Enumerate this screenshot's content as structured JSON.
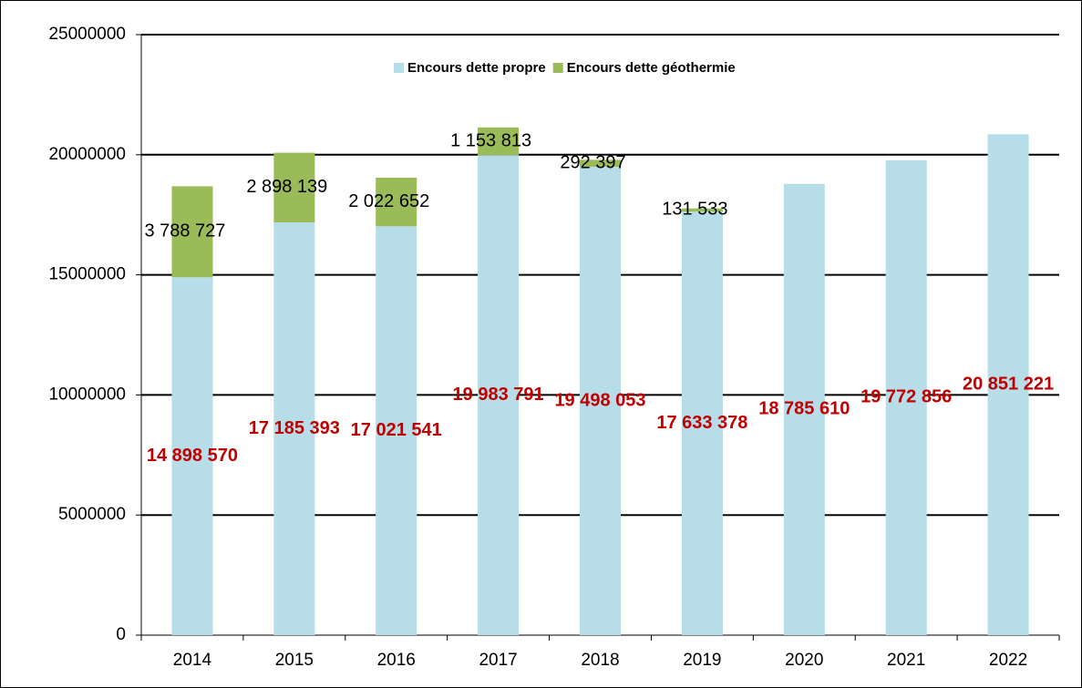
{
  "chart_data": {
    "type": "bar",
    "stacked": true,
    "categories": [
      "2014",
      "2015",
      "2016",
      "2017",
      "2018",
      "2019",
      "2020",
      "2021",
      "2022"
    ],
    "series": [
      {
        "name": "Encours dette propre",
        "color": "#b7dde8",
        "label_color": "#c00000",
        "values": [
          14898570,
          17185393,
          17021541,
          19983791,
          19498053,
          17633378,
          18785610,
          19772856,
          20851221
        ],
        "value_labels": [
          "14 898 570",
          "17 185 393",
          "17 021 541",
          "19 983 791",
          "19 498 053",
          "17 633 378",
          "18 785 610",
          "19 772 856",
          "20 851 221"
        ]
      },
      {
        "name": "Encours dette géothermie",
        "color": "#9bbb59",
        "label_color": "#000000",
        "values": [
          3788727,
          2898139,
          2022652,
          1153813,
          292397,
          131533,
          null,
          null,
          null
        ],
        "value_labels": [
          "3 788 727",
          "2 898 139",
          "2 022 652",
          "1 153 813",
          "292 397",
          "131 533",
          null,
          null,
          null
        ]
      }
    ],
    "ylim": [
      0,
      25000000
    ],
    "yticks": [
      0,
      5000000,
      10000000,
      15000000,
      20000000,
      25000000
    ],
    "grid": true,
    "legend": "top"
  }
}
